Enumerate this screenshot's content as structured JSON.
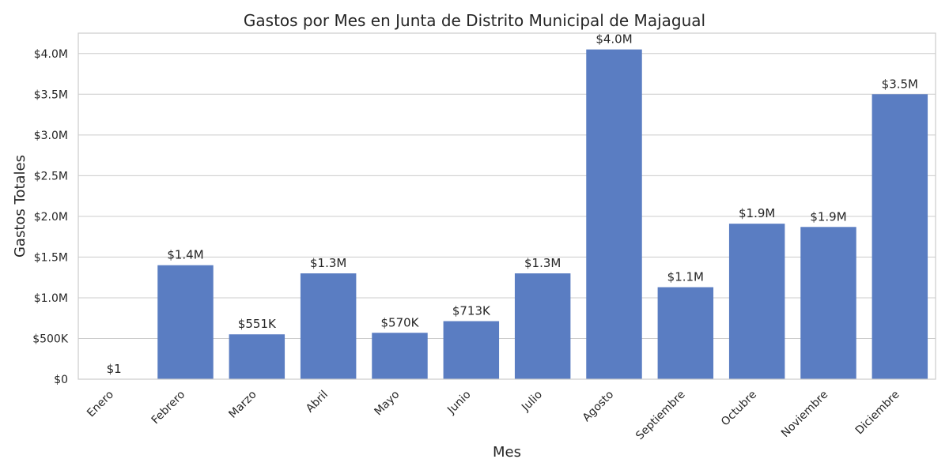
{
  "chart_data": {
    "type": "bar",
    "title": "Gastos por Mes en Junta de Distrito Municipal de Majagual",
    "xlabel": "Mes",
    "ylabel": "Gastos Totales",
    "categories": [
      "Enero",
      "Febrero",
      "Marzo",
      "Abril",
      "Mayo",
      "Junio",
      "Julio",
      "Agosto",
      "Septiembre",
      "Octubre",
      "Noviembre",
      "Diciembre"
    ],
    "values": [
      1,
      1400000,
      551000,
      1300000,
      570000,
      713000,
      1300000,
      4050000,
      1130000,
      1910000,
      1870000,
      3500000
    ],
    "data_labels": [
      "$1",
      "$1.4M",
      "$551K",
      "$1.3M",
      "$570K",
      "$713K",
      "$1.3M",
      "$4.0M",
      "$1.1M",
      "$1.9M",
      "$1.9M",
      "$3.5M"
    ],
    "yticks": [
      0,
      500000,
      1000000,
      1500000,
      2000000,
      2500000,
      3000000,
      3500000,
      4000000
    ],
    "ytick_labels": [
      "$0",
      "$500K",
      "$1.0M",
      "$1.5M",
      "$2.0M",
      "$2.5M",
      "$3.0M",
      "$3.5M",
      "$4.0M"
    ],
    "ylim": [
      0,
      4250000
    ],
    "grid": true,
    "bar_color": "#5a7dc2"
  }
}
